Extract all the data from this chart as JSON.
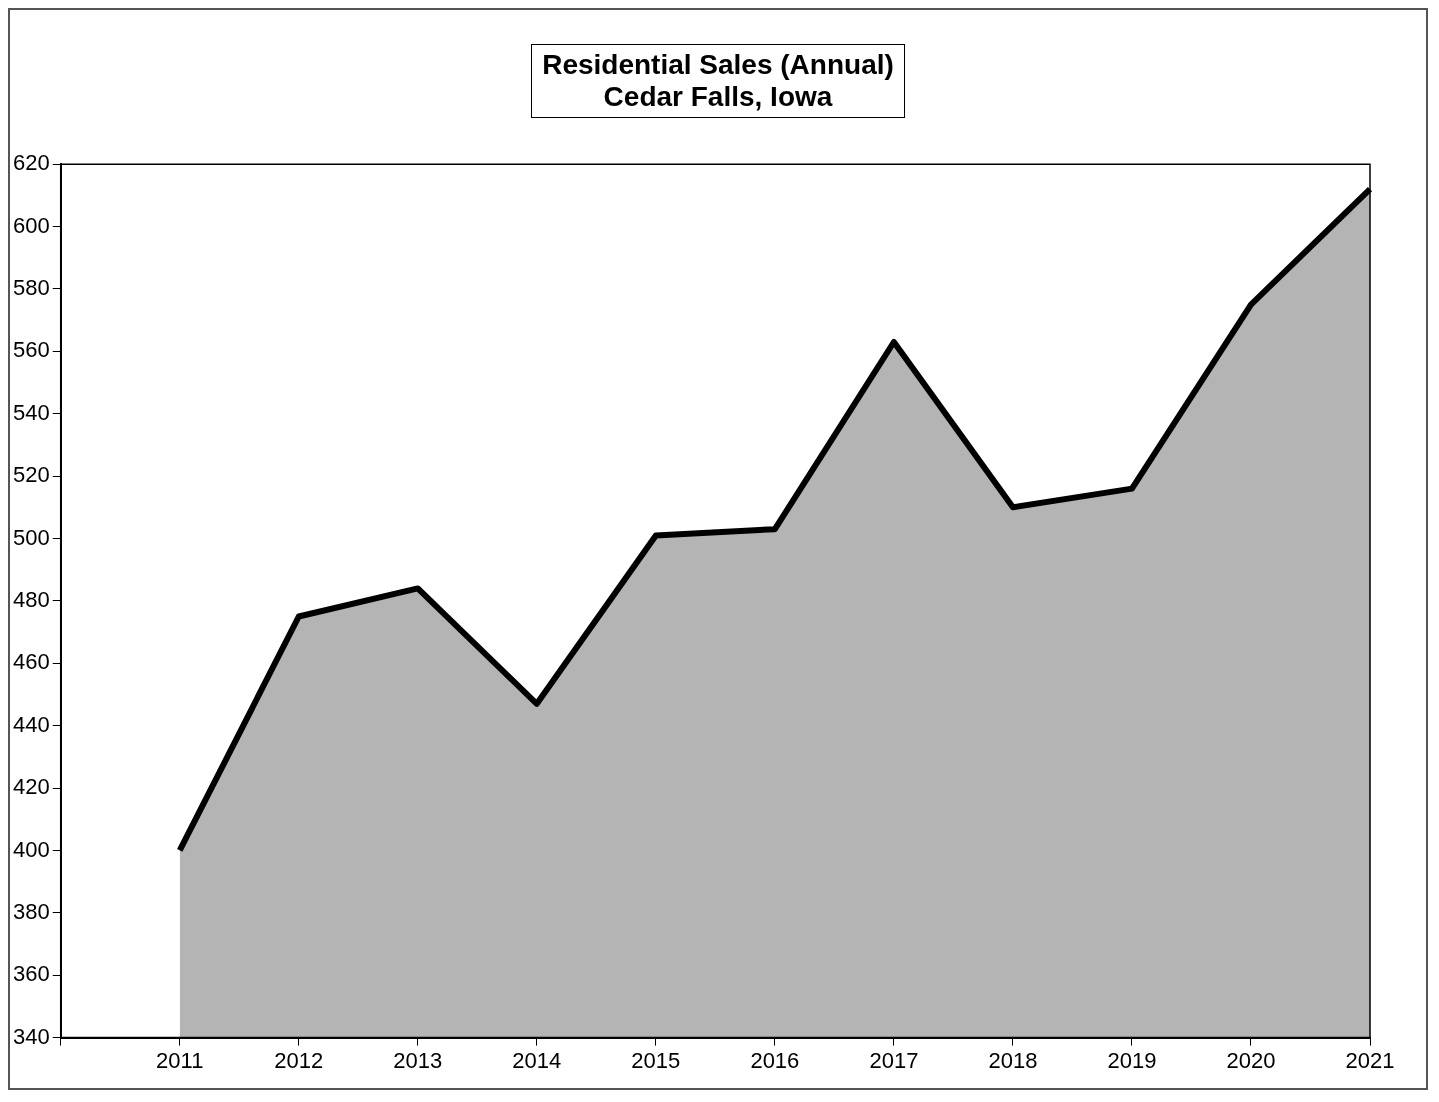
{
  "chart_data": {
    "type": "area",
    "title": "Residential Sales (Annual)\nCedar Falls, Iowa",
    "categories": [
      null,
      "2011",
      "2012",
      "2013",
      "2014",
      "2015",
      "2016",
      "2017",
      "2018",
      "2019",
      "2020",
      "2021"
    ],
    "series": [
      {
        "color": "#b4b4b4",
        "values": [
          null,
          400,
          475,
          484,
          447,
          501,
          503,
          563,
          510,
          516,
          575,
          612
        ]
      }
    ],
    "ylim": [
      340,
      620
    ],
    "yticks": [
      340,
      360,
      380,
      400,
      420,
      440,
      460,
      480,
      500,
      520,
      540,
      560,
      580,
      600,
      620
    ],
    "grid": false,
    "legend": false
  }
}
